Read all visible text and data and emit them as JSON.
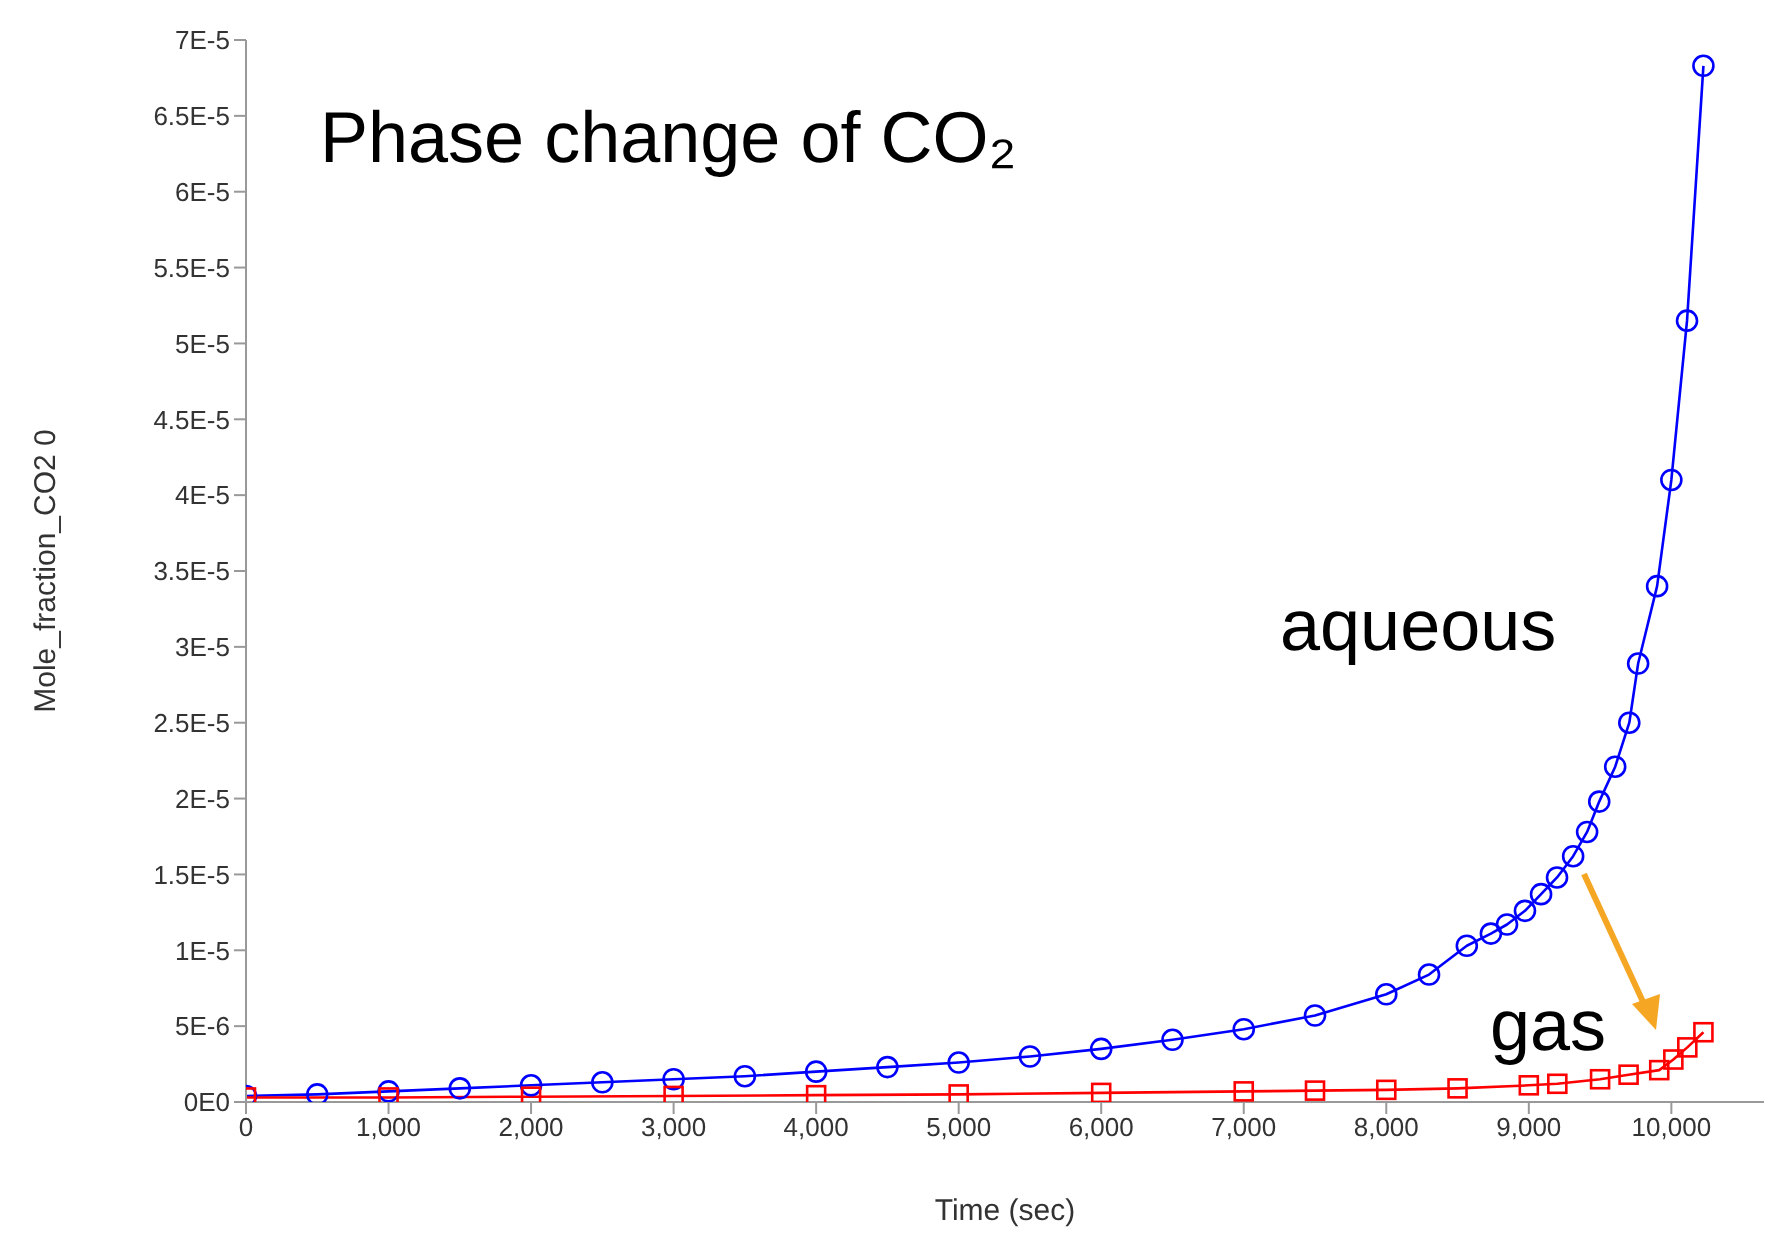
{
  "chart_data": {
    "type": "line",
    "title": "Phase change of CO₂",
    "xlabel": "Time (sec)",
    "ylabel": "Mole_fraction_CO2 0",
    "series": [
      {
        "name": "aqueous",
        "color": "#0000ff",
        "marker": "circle",
        "x": [
          0,
          500,
          1000,
          1500,
          2000,
          2500,
          3000,
          3500,
          4000,
          4500,
          5000,
          5500,
          6000,
          6500,
          7000,
          7500,
          8000,
          8300,
          8565,
          8734,
          8847,
          8973,
          9086,
          9198,
          9311,
          9409,
          9494,
          9606,
          9705,
          9767,
          9900,
          10000,
          10110,
          10225
        ],
        "values": [
          4e-07,
          5e-07,
          7e-07,
          9e-07,
          1.1e-06,
          1.3e-06,
          1.5e-06,
          1.7e-06,
          2e-06,
          2.3e-06,
          2.6e-06,
          3e-06,
          3.5e-06,
          4.1e-06,
          4.8e-06,
          5.7e-06,
          7.1e-06,
          8.4e-06,
          1.03e-05,
          1.11e-05,
          1.17e-05,
          1.26e-05,
          1.37e-05,
          1.48e-05,
          1.62e-05,
          1.78e-05,
          1.98e-05,
          2.21e-05,
          2.5e-05,
          2.89e-05,
          3.4e-05,
          4.1e-05,
          5.15e-05,
          6.83e-05
        ]
      },
      {
        "name": "gas",
        "color": "#ff0000",
        "marker": "square",
        "x": [
          0,
          1000,
          2000,
          3000,
          4000,
          5000,
          6000,
          7000,
          7500,
          8000,
          8500,
          9000,
          9200,
          9500,
          9700,
          9915,
          10014,
          10112,
          10225
        ],
        "values": [
          3e-07,
          3e-07,
          3.5e-07,
          4e-07,
          4.5e-07,
          5e-07,
          6e-07,
          7e-07,
          7.5e-07,
          8e-07,
          9e-07,
          1.1e-06,
          1.2e-06,
          1.5e-06,
          1.8e-06,
          2.1e-06,
          2.8e-06,
          3.6e-06,
          4.6e-06
        ]
      }
    ],
    "xlim": [
      0,
      10650
    ],
    "xticks": [
      0,
      {
        "value": 1000,
        "label": "1,000"
      },
      {
        "value": 2000,
        "label": "2,000"
      },
      {
        "value": 3000,
        "label": "3,000"
      },
      {
        "value": 4000,
        "label": "4,000"
      },
      {
        "value": 5000,
        "label": "5,000"
      },
      {
        "value": 6000,
        "label": "6,000"
      },
      {
        "value": 7000,
        "label": "7,000"
      },
      {
        "value": 8000,
        "label": "8,000"
      },
      {
        "value": 9000,
        "label": "9,000"
      },
      {
        "value": 10000,
        "label": "10,000"
      }
    ],
    "ylim": [
      0,
      7e-05
    ],
    "yticks": [
      {
        "value": 0,
        "label": "0E0"
      },
      {
        "value": 5e-06,
        "label": "5E-6"
      },
      {
        "value": 1e-05,
        "label": "1E-5"
      },
      {
        "value": 1.5e-05,
        "label": "1.5E-5"
      },
      {
        "value": 2e-05,
        "label": "2E-5"
      },
      {
        "value": 2.5e-05,
        "label": "2.5E-5"
      },
      {
        "value": 3e-05,
        "label": "3E-5"
      },
      {
        "value": 3.5e-05,
        "label": "3.5E-5"
      },
      {
        "value": 4e-05,
        "label": "4E-5"
      },
      {
        "value": 4.5e-05,
        "label": "4.5E-5"
      },
      {
        "value": 5e-05,
        "label": "5E-5"
      },
      {
        "value": 5.5e-05,
        "label": "5.5E-5"
      },
      {
        "value": 6e-05,
        "label": "6E-5"
      },
      {
        "value": 6.5e-05,
        "label": "6.5E-5"
      },
      {
        "value": 7e-05,
        "label": "7E-5"
      }
    ],
    "grid": false,
    "legend": false
  }
}
